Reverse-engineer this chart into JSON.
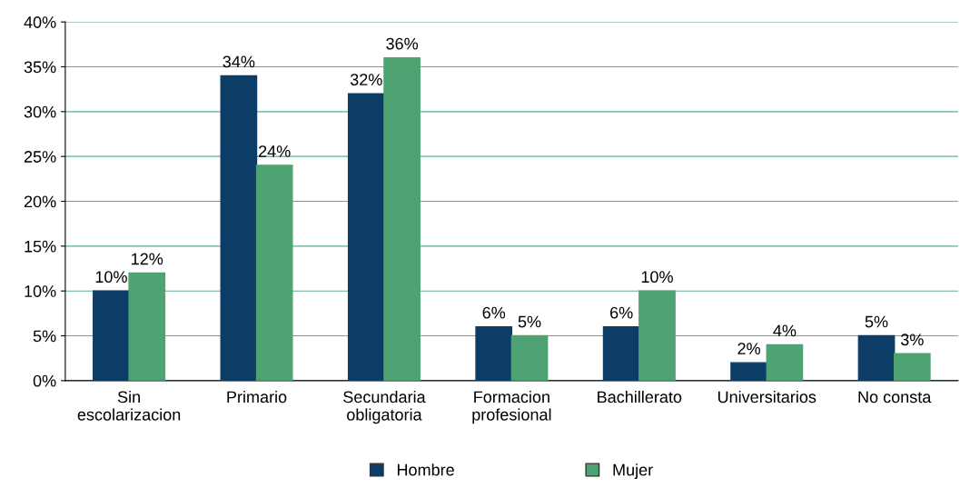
{
  "chart_data": {
    "type": "bar",
    "categories": [
      "Sin\nescolarizacion",
      "Primario",
      "Secundaria\nobligatoria",
      "Formacion\nprofesional",
      "Bachillerato",
      "Universitarios",
      "No consta"
    ],
    "series": [
      {
        "name": "Hombre",
        "color": "#0b3d66",
        "values": [
          10,
          34,
          32,
          6,
          6,
          2,
          5
        ],
        "value_labels": [
          "10%",
          "34%",
          "32%",
          "6%",
          "6%",
          "2%",
          "5%"
        ]
      },
      {
        "name": "Mujer",
        "color": "#4fa372",
        "values": [
          12,
          24,
          36,
          5,
          10,
          4,
          3
        ],
        "value_labels": [
          "12%",
          "24%",
          "36%",
          "5%",
          "10%",
          "4%",
          "3%"
        ]
      }
    ],
    "ylim": [
      0,
      40
    ],
    "yticks": [
      {
        "value": 0,
        "label": "0%"
      },
      {
        "value": 5,
        "label": "5%"
      },
      {
        "value": 10,
        "label": "10%"
      },
      {
        "value": 15,
        "label": "15%"
      },
      {
        "value": 20,
        "label": "20%"
      },
      {
        "value": 25,
        "label": "25%"
      },
      {
        "value": 30,
        "label": "30%"
      },
      {
        "value": 35,
        "label": "35%"
      },
      {
        "value": 40,
        "label": "40%"
      }
    ],
    "grid": "y",
    "legend": "bottom"
  }
}
